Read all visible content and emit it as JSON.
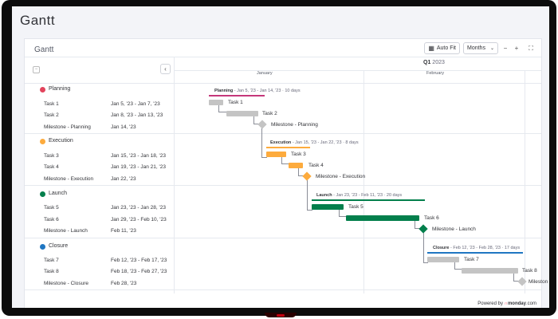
{
  "page_title": "Gantt",
  "card_title": "Gantt",
  "toolbar": {
    "auto_fit": "Auto Fit",
    "zoom_value": "Months",
    "minus": "−",
    "plus": "+"
  },
  "timeline": {
    "quarter": "Q1",
    "year": "2023",
    "months": [
      "January",
      "February"
    ]
  },
  "groups": [
    {
      "name": "Planning",
      "color": "#e2445c",
      "summary": "Planning",
      "meta": " - Jan 5, '23 - Jan 14, '23 · 10 days",
      "tasks": [
        {
          "name": "Task 1",
          "dates": "Jan 5, '23 - Jan 7, '23"
        },
        {
          "name": "Task 2",
          "dates": "Jan 8, '23 - Jan 13, '23"
        },
        {
          "name": "Milestone - Planning",
          "dates": "Jan 14, '23"
        }
      ]
    },
    {
      "name": "Execution",
      "color": "#fdab3d",
      "summary": "Execution",
      "meta": " - Jan 15, '23 - Jan 22, '23 · 8 days",
      "tasks": [
        {
          "name": "Task 3",
          "dates": "Jan 15, '23 - Jan 18, '23"
        },
        {
          "name": "Task 4",
          "dates": "Jan 19, '23 - Jan 21, '23"
        },
        {
          "name": "Milestone - Execution",
          "dates": "Jan 22, '23"
        }
      ]
    },
    {
      "name": "Launch",
      "color": "#037f4c",
      "summary": "Launch",
      "meta": " - Jan 23, '23 - Feb 11, '23 · 20 days",
      "tasks": [
        {
          "name": "Task 5",
          "dates": "Jan 23, '23 - Jan 28, '23"
        },
        {
          "name": "Task 6",
          "dates": "Jan 29, '23 - Feb 10, '23"
        },
        {
          "name": "Milestone - Launch",
          "dates": "Feb 11, '23"
        }
      ]
    },
    {
      "name": "Closure",
      "color": "#1f76c2",
      "summary": "Closure",
      "meta": " - Feb 12, '23 - Feb 28, '23 · 17 days",
      "tasks": [
        {
          "name": "Task 7",
          "dates": "Feb 12, '23 - Feb 17, '23"
        },
        {
          "name": "Task 8",
          "dates": "Feb 18, '23 - Feb 27, '23"
        },
        {
          "name": "Milestone - Closure",
          "dates": "Feb 28, '23"
        }
      ]
    }
  ],
  "bar_labels": {
    "t1": "Task 1",
    "t2": "Task 2",
    "m1": "Milestone - Planning",
    "t3": "Task 3",
    "t4": "Task 4",
    "m2": "Milestone - Execution",
    "t5": "Task 5",
    "t6": "Task 6",
    "m3": "Milestone - Launch",
    "t7": "Task 7",
    "t8": "Task 8",
    "m4": "Mileston"
  },
  "footer": {
    "prefix": "Powered by",
    "brand": "monday",
    "suffix": ".com"
  }
}
